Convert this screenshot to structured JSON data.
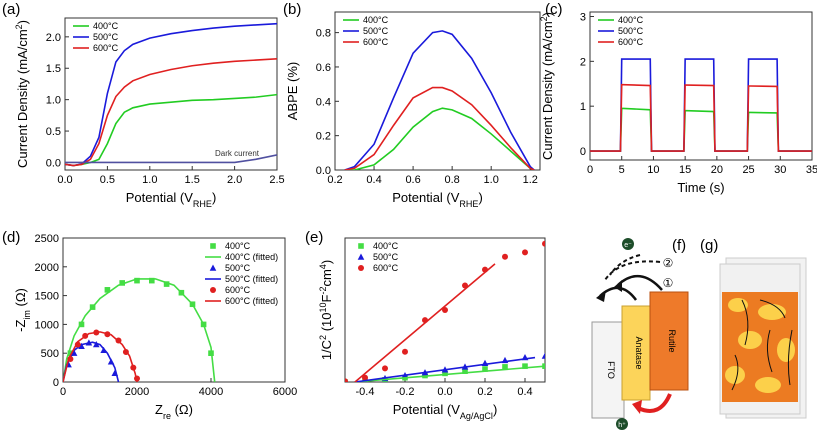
{
  "chart_data": [
    {
      "type": "line",
      "panel": "(a)",
      "legend": "upper left",
      "annotation": "Dark current",
      "x_label": [
        [
          "Potential (V",
          "normal"
        ],
        [
          "RHE",
          "sub"
        ],
        [
          ")",
          "normal"
        ]
      ],
      "y_label": [
        [
          "Current Density (mA/cm",
          "normal"
        ],
        [
          "2",
          "sup"
        ],
        [
          ")",
          "normal"
        ]
      ],
      "xlim": [
        0,
        2.5
      ],
      "ylim": [
        -0.12,
        2.3
      ],
      "xticks": [
        {
          "value": 0,
          "label": "0.0"
        },
        {
          "value": 0.5,
          "label": "0.5"
        },
        {
          "value": 1,
          "label": "1.0"
        },
        {
          "value": 1.5,
          "label": "1.5"
        },
        {
          "value": 2,
          "label": "2.0"
        },
        {
          "value": 2.5,
          "label": "2.5"
        }
      ],
      "yticks": [
        {
          "value": 0,
          "label": "0.0"
        },
        {
          "value": 0.5,
          "label": "0.5"
        },
        {
          "value": 1,
          "label": "1.0"
        },
        {
          "value": 1.5,
          "label": "1.5"
        },
        {
          "value": 2,
          "label": "2.0"
        }
      ],
      "x": [
        0,
        0.1,
        0.2,
        0.3,
        0.4,
        0.5,
        0.6,
        0.7,
        0.8,
        1.0,
        1.25,
        1.5,
        1.75,
        2.0,
        2.25,
        2.5
      ],
      "series": [
        {
          "name": "400°C",
          "color": "#22cc22",
          "marker": "line",
          "values": [
            -0.03,
            -0.05,
            -0.03,
            0,
            0.05,
            0.3,
            0.62,
            0.8,
            0.87,
            0.93,
            0.96,
            0.99,
            1.0,
            1.02,
            1.04,
            1.08
          ]
        },
        {
          "name": "500°C",
          "color": "#1a1adb",
          "marker": "line",
          "values": [
            -0.03,
            -0.05,
            -0.02,
            0.1,
            0.4,
            1.1,
            1.6,
            1.78,
            1.88,
            1.98,
            2.05,
            2.1,
            2.14,
            2.17,
            2.19,
            2.21
          ]
        },
        {
          "name": "600°C",
          "color": "#e02020",
          "marker": "line",
          "values": [
            -0.03,
            -0.05,
            -0.03,
            0.05,
            0.3,
            0.75,
            1.05,
            1.2,
            1.3,
            1.4,
            1.48,
            1.54,
            1.58,
            1.61,
            1.63,
            1.65
          ]
        },
        {
          "color": "#5050a0",
          "marker": "line",
          "values": [
            0,
            0,
            0,
            0,
            0,
            0,
            0,
            0,
            0,
            0,
            0,
            0,
            0,
            0,
            0.05,
            0.12
          ]
        }
      ]
    },
    {
      "type": "line",
      "panel": "(b)",
      "legend": "upper left",
      "x_label": [
        [
          "Potential (V",
          "normal"
        ],
        [
          "RHE",
          "sub"
        ],
        [
          ")",
          "normal"
        ]
      ],
      "y_label": [
        [
          "ABPE (%)",
          "normal"
        ]
      ],
      "xlim": [
        0.2,
        1.25
      ],
      "ylim": [
        0,
        0.92
      ],
      "xticks": [
        0.2,
        0.4,
        0.6,
        0.8,
        {
          "value": 1,
          "label": "1.0"
        },
        1.2
      ],
      "yticks": [
        {
          "value": 0,
          "label": "0.0"
        },
        0.2,
        0.4,
        0.6,
        0.8
      ],
      "x": [
        0.25,
        0.3,
        0.4,
        0.5,
        0.6,
        0.7,
        0.75,
        0.8,
        0.9,
        1.0,
        1.1,
        1.2,
        1.22
      ],
      "series": [
        {
          "name": "400°C",
          "color": "#22cc22",
          "marker": "line",
          "values": [
            0,
            0,
            0.03,
            0.12,
            0.25,
            0.34,
            0.36,
            0.35,
            0.3,
            0.21,
            0.11,
            0.01,
            0
          ]
        },
        {
          "name": "500°C",
          "color": "#1a1adb",
          "marker": "line",
          "values": [
            0,
            0.02,
            0.15,
            0.42,
            0.68,
            0.8,
            0.81,
            0.79,
            0.65,
            0.45,
            0.22,
            0.02,
            0
          ]
        },
        {
          "name": "600°C",
          "color": "#e02020",
          "marker": "line",
          "values": [
            0,
            0.01,
            0.09,
            0.26,
            0.42,
            0.48,
            0.48,
            0.46,
            0.38,
            0.26,
            0.13,
            0.01,
            0
          ]
        }
      ]
    },
    {
      "type": "line",
      "panel": "(c)",
      "legend": "upper left",
      "x_label": [
        [
          "Time (s)",
          "normal"
        ]
      ],
      "y_label": [
        [
          "Current Density (mA/cm",
          "normal"
        ],
        [
          "2",
          "sup"
        ],
        [
          ")",
          "normal"
        ]
      ],
      "xlim": [
        0,
        35
      ],
      "ylim": [
        -0.2,
        3.1
      ],
      "xticks": [
        0,
        5,
        10,
        15,
        20,
        25,
        30,
        35
      ],
      "yticks": [
        0,
        1,
        2,
        3
      ],
      "x": [
        0,
        4.8,
        5,
        5.3,
        9.5,
        9.7,
        14.8,
        15,
        15.3,
        19.5,
        19.7,
        24.8,
        25,
        25.3,
        29.5,
        29.7,
        35
      ],
      "series": [
        {
          "name": "400°C",
          "color": "#22cc22",
          "marker": "line",
          "values": [
            0,
            0,
            0.95,
            0.95,
            0.92,
            0,
            0,
            0.9,
            0.9,
            0.88,
            0,
            0,
            0.86,
            0.86,
            0.85,
            0,
            0
          ]
        },
        {
          "name": "500°C",
          "color": "#1a1adb",
          "marker": "line",
          "values": [
            0,
            0,
            2.05,
            2.05,
            2.05,
            0,
            0,
            2.05,
            2.05,
            2.05,
            0,
            0,
            2.05,
            2.05,
            2.05,
            0,
            0
          ]
        },
        {
          "name": "600°C",
          "color": "#e02020",
          "marker": "line",
          "values": [
            0,
            0,
            1.48,
            1.48,
            1.46,
            0,
            0,
            1.47,
            1.47,
            1.46,
            0,
            0,
            1.45,
            1.45,
            1.44,
            0,
            0
          ]
        }
      ]
    },
    {
      "type": "scatter",
      "panel": "(d)",
      "legend": "upper right",
      "x_label": [
        [
          "Z",
          "normal"
        ],
        [
          "re",
          "sub"
        ],
        [
          " (Ω)",
          "normal"
        ]
      ],
      "y_label": [
        [
          "-Z",
          "normal"
        ],
        [
          "im",
          "sub"
        ],
        [
          " (Ω)",
          "normal"
        ]
      ],
      "xlim": [
        0,
        6000
      ],
      "ylim": [
        0,
        2500
      ],
      "xticks": [
        0,
        2000,
        4000,
        6000
      ],
      "yticks": [
        0,
        500,
        1000,
        1500,
        2000,
        2500
      ],
      "series": [
        {
          "name": "400°C",
          "color": "#44dd44",
          "marker": "square",
          "x": [
            200,
            500,
            800,
            1200,
            1600,
            2000,
            2400,
            2800,
            3200,
            3500,
            3800,
            4000
          ],
          "values": [
            500,
            1000,
            1300,
            1600,
            1720,
            1760,
            1760,
            1700,
            1550,
            1350,
            1000,
            500
          ]
        },
        {
          "name": "400°C (fitted)",
          "color": "#44dd44",
          "marker": "line",
          "x": [
            0,
            100,
            300,
            600,
            1000,
            1500,
            2000,
            2500,
            3000,
            3500,
            3800,
            4000,
            4100
          ],
          "values": [
            0,
            400,
            800,
            1150,
            1450,
            1680,
            1790,
            1790,
            1680,
            1350,
            1000,
            600,
            0
          ]
        },
        {
          "name": "500°C",
          "color": "#1a1adb",
          "marker": "triangle",
          "x": [
            150,
            300,
            500,
            700,
            900,
            1100,
            1300,
            1400
          ],
          "values": [
            300,
            500,
            620,
            680,
            650,
            550,
            350,
            150
          ]
        },
        {
          "name": "500°C (fitted)",
          "color": "#1a1adb",
          "marker": "line",
          "x": [
            0,
            100,
            300,
            500,
            800,
            1000,
            1200,
            1400,
            1500
          ],
          "values": [
            0,
            300,
            550,
            650,
            690,
            650,
            500,
            250,
            0
          ]
        },
        {
          "name": "600°C",
          "color": "#e02020",
          "marker": "circle",
          "x": [
            200,
            400,
            600,
            900,
            1200,
            1500,
            1700,
            1900,
            2000
          ],
          "values": [
            400,
            650,
            800,
            860,
            830,
            720,
            520,
            250,
            60
          ]
        },
        {
          "name": "600°C (fitted)",
          "color": "#e02020",
          "marker": "line",
          "x": [
            0,
            150,
            400,
            700,
            1000,
            1300,
            1600,
            1800,
            1950,
            2000
          ],
          "values": [
            0,
            400,
            700,
            840,
            870,
            820,
            650,
            450,
            150,
            0
          ]
        }
      ]
    },
    {
      "type": "scatter",
      "panel": "(e)",
      "legend": "upper left",
      "x_label": [
        [
          "Potential (V",
          "normal"
        ],
        [
          "Ag/AgCl",
          "sub"
        ],
        [
          ")",
          "normal"
        ]
      ],
      "y_label": [
        [
          "1/C",
          "normal"
        ],
        [
          "2",
          "sup"
        ],
        [
          " (10",
          "normal"
        ],
        [
          "10",
          "sup"
        ],
        [
          "F",
          "normal"
        ],
        [
          "-2",
          "sup"
        ],
        [
          "cm",
          "normal"
        ],
        [
          "4",
          "sup"
        ],
        [
          ")",
          "normal"
        ]
      ],
      "xlim": [
        -0.5,
        0.5
      ],
      "ylim": [
        0,
        10
      ],
      "xticks": [
        -0.4,
        -0.2,
        {
          "value": 0,
          "label": "0.0"
        },
        0.2,
        0.4
      ],
      "series": [
        {
          "name": "400°C",
          "color": "#44dd44",
          "marker": "square",
          "x": [
            -0.5,
            -0.4,
            -0.3,
            -0.2,
            -0.1,
            0,
            0.1,
            0.2,
            0.3,
            0.4,
            0.5
          ],
          "values": [
            0,
            0.05,
            0.15,
            0.3,
            0.45,
            0.6,
            0.75,
            0.9,
            1.05,
            1.1,
            1.1
          ]
        },
        {
          "name": "500°C",
          "color": "#1a1adb",
          "marker": "triangle",
          "x": [
            -0.5,
            -0.4,
            -0.3,
            -0.2,
            -0.1,
            0,
            0.1,
            0.2,
            0.3,
            0.4,
            0.5
          ],
          "values": [
            0,
            0.1,
            0.25,
            0.45,
            0.65,
            0.85,
            1.05,
            1.3,
            1.5,
            1.7,
            1.8
          ]
        },
        {
          "name": "600°C",
          "color": "#e02020",
          "marker": "circle",
          "x": [
            -0.5,
            -0.4,
            -0.3,
            -0.2,
            -0.1,
            0,
            0.1,
            0.2,
            0.3,
            0.4,
            0.5
          ],
          "values": [
            0.05,
            0.3,
            0.95,
            2.1,
            4.3,
            5.0,
            6.7,
            7.8,
            8.7,
            9.0,
            9.6
          ]
        },
        {
          "color": "#44dd44",
          "marker": "line",
          "x": [
            -0.45,
            0.5
          ],
          "values": [
            0,
            1.1
          ]
        },
        {
          "color": "#1a1adb",
          "marker": "line",
          "x": [
            -0.45,
            0.45
          ],
          "values": [
            0,
            1.7
          ]
        },
        {
          "color": "#e02020",
          "marker": "line",
          "x": [
            -0.45,
            0.25
          ],
          "values": [
            0,
            8.2
          ]
        }
      ]
    }
  ],
  "panel_f": {
    "label": "(f)",
    "fto": "FTO",
    "anatase": "Anatase",
    "rutile": "Rutile",
    "step1": "①",
    "step2": "②",
    "electron": "e⁻",
    "hole": "h⁺"
  },
  "panel_g": {
    "label": "(g)"
  }
}
